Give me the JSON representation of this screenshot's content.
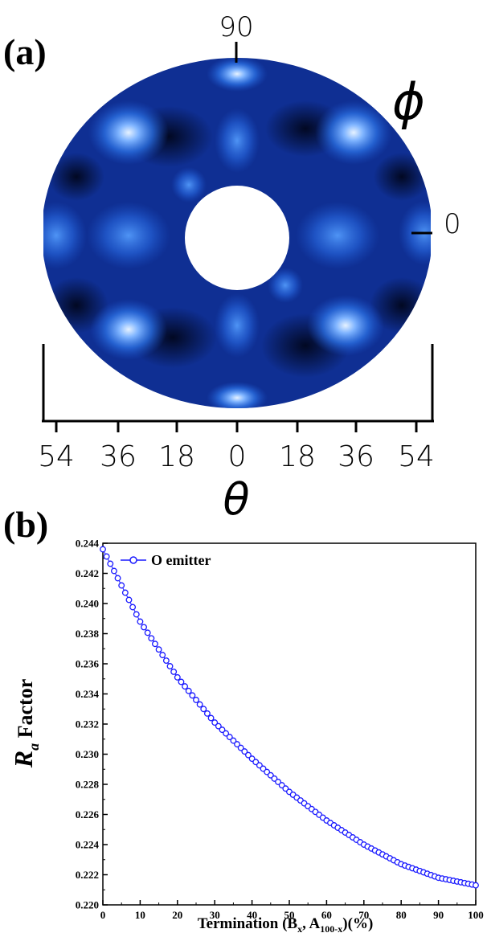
{
  "panel_a": {
    "label": "(a)",
    "phi_symbol": "ϕ",
    "phi_ticks": [
      "90",
      "0"
    ],
    "theta_symbol": "θ",
    "theta_ticks": [
      "54",
      "36",
      "18",
      "0",
      "18",
      "36",
      "54"
    ],
    "colors": {
      "base": "#0d2c8c",
      "bright": "#dcecff",
      "mid": "#2f78e6",
      "dark": "#020824"
    }
  },
  "chart_data": [
    {
      "type": "heatmap",
      "title": "",
      "description_visible": "polar intensity map",
      "xlabel": "θ",
      "ylabel": "ϕ",
      "x_ticks": [
        "54",
        "36",
        "18",
        "0",
        "18",
        "36",
        "54"
      ],
      "phi_ticks": [
        "90",
        "0"
      ]
    },
    {
      "type": "scatter",
      "title": "",
      "panel_label": "(b)",
      "xlabel_main": "Termination (B",
      "xlabel_sub1": "x",
      "xlabel_mid": ", A",
      "xlabel_sub2": "100-x",
      "xlabel_tail": ")(%)",
      "ylabel_main": "R",
      "ylabel_sub": "a",
      "ylabel_tail": " Factor",
      "xlim": [
        0,
        100
      ],
      "ylim": [
        0.22,
        0.244
      ],
      "x_ticks": [
        0,
        10,
        20,
        30,
        40,
        50,
        60,
        70,
        80,
        90,
        100
      ],
      "y_ticks": [
        "0.220",
        "0.222",
        "0.224",
        "0.226",
        "0.228",
        "0.230",
        "0.232",
        "0.234",
        "0.236",
        "0.238",
        "0.240",
        "0.242",
        "0.244"
      ],
      "legend": "top-left",
      "series": [
        {
          "name": "O emitter",
          "color": "#1a1aff",
          "marker": "open-circle",
          "x": [
            0,
            10,
            20,
            30,
            40,
            50,
            60,
            70,
            80,
            90,
            100
          ],
          "y": [
            0.2436,
            0.2388,
            0.2351,
            0.2321,
            0.2297,
            0.2275,
            0.2256,
            0.224,
            0.2227,
            0.2218,
            0.2213
          ]
        }
      ]
    }
  ]
}
